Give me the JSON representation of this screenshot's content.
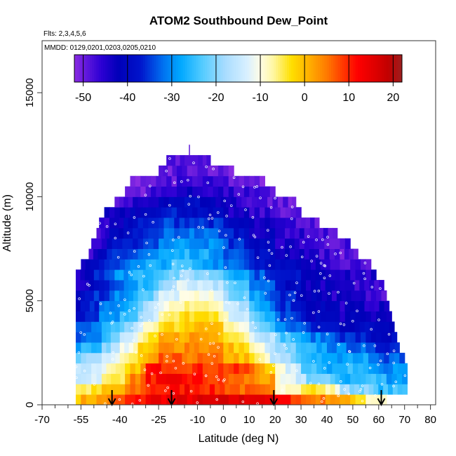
{
  "chart_data": {
    "type": "heatmap",
    "title": "ATOM2 Southbound Dew_Point",
    "subtitle_flights": "Flts: 2,3,4,5,6",
    "subtitle_dates": "MMDD: 0129,0201,0203,0205,0210",
    "xlabel": "Latitude (deg N)",
    "ylabel": "Altitude (m)",
    "xlim": [
      -70,
      82
    ],
    "ylim": [
      0,
      17500
    ],
    "x_ticks": [
      -70,
      -55,
      -40,
      -25,
      -10,
      0,
      10,
      20,
      30,
      40,
      50,
      60,
      70,
      80
    ],
    "x_tick_labels": [
      "-70",
      "-55",
      "-40",
      "-25",
      "-10",
      "0",
      "10",
      "20",
      "30",
      "40",
      "50",
      "60",
      "70",
      "80"
    ],
    "x_minor_ticks": [
      -65,
      -60,
      -50,
      -45,
      -35,
      -30,
      -20,
      -15,
      -5,
      5,
      15,
      25,
      35,
      45,
      55,
      65,
      75
    ],
    "y_ticks": [
      0,
      5000,
      10000,
      15000
    ],
    "y_tick_labels": [
      "0",
      "5000",
      "10000",
      "15000"
    ],
    "colorbar": {
      "min": -52,
      "max": 22,
      "ticks": [
        -50,
        -40,
        -30,
        -20,
        -10,
        0,
        10,
        20
      ],
      "tick_labels": [
        "-50",
        "-40",
        "-30",
        "-20",
        "-10",
        "0",
        "10",
        "20"
      ],
      "stops": [
        {
          "value": -52,
          "color": "#8a2be2"
        },
        {
          "value": -46,
          "color": "#2d00d4"
        },
        {
          "value": -42,
          "color": "#0000b8"
        },
        {
          "value": -37,
          "color": "#0015cc"
        },
        {
          "value": -32,
          "color": "#0070f0"
        },
        {
          "value": -28,
          "color": "#00a8ff"
        },
        {
          "value": -23,
          "color": "#55ccff"
        },
        {
          "value": -18,
          "color": "#a8dcff"
        },
        {
          "value": -13,
          "color": "#d8f0ff"
        },
        {
          "value": -10,
          "color": "#fffde6"
        },
        {
          "value": -7,
          "color": "#fff6a0"
        },
        {
          "value": -3,
          "color": "#ffe000"
        },
        {
          "value": 1,
          "color": "#ffb000"
        },
        {
          "value": 5,
          "color": "#ff7a00"
        },
        {
          "value": 9,
          "color": "#ff3300"
        },
        {
          "value": 12,
          "color": "#ff0000"
        },
        {
          "value": 16,
          "color": "#dd0000"
        },
        {
          "value": 19,
          "color": "#c00000"
        },
        {
          "value": 22,
          "color": "#9c1f1f"
        }
      ]
    },
    "grid": false,
    "legend": "none",
    "arrows_lat": [
      -43,
      -20,
      19.5,
      61
    ],
    "rows": [
      {
        "alt": 500,
        "segs": [
          [
            -57,
            0
          ],
          [
            -45,
            5
          ],
          [
            -38,
            9
          ],
          [
            -30,
            14
          ],
          [
            10,
            17
          ],
          [
            20,
            12
          ],
          [
            30,
            6
          ],
          [
            45,
            1
          ],
          [
            55,
            -8
          ]
        ],
        "xmax": 63
      },
      {
        "alt": 1000,
        "segs": [
          [
            -57,
            -6
          ],
          [
            -47,
            -2
          ],
          [
            -38,
            3
          ],
          [
            -30,
            10
          ],
          [
            -15,
            13
          ],
          [
            20,
            -8
          ],
          [
            32,
            -2
          ],
          [
            45,
            -18
          ],
          [
            58,
            -25
          ]
        ],
        "xmax": 71
      },
      {
        "alt": 1500,
        "segs": [
          [
            -57,
            -15
          ],
          [
            -47,
            -8
          ],
          [
            -38,
            2
          ],
          [
            -30,
            11
          ],
          [
            -18,
            13
          ],
          [
            20,
            -11
          ],
          [
            32,
            -20
          ],
          [
            45,
            -27
          ],
          [
            55,
            -24
          ],
          [
            63,
            -28
          ]
        ],
        "xmax": 71
      },
      {
        "alt": 2000,
        "segs": [
          [
            -57,
            -16
          ],
          [
            -47,
            -10
          ],
          [
            -38,
            -5
          ],
          [
            -30,
            11
          ],
          [
            -18,
            10
          ],
          [
            10,
            6
          ],
          [
            20,
            -10
          ],
          [
            30,
            -22
          ],
          [
            40,
            -28
          ],
          [
            50,
            -24
          ],
          [
            60,
            -30
          ]
        ],
        "xmax": 71
      },
      {
        "alt": 2500,
        "segs": [
          [
            -57,
            -22
          ],
          [
            -47,
            -14
          ],
          [
            -40,
            -8
          ],
          [
            -33,
            -3
          ],
          [
            -25,
            6
          ],
          [
            -18,
            6
          ],
          [
            0,
            2
          ],
          [
            10,
            -4
          ],
          [
            18,
            -16
          ],
          [
            28,
            -24
          ],
          [
            40,
            -30
          ],
          [
            50,
            -27
          ],
          [
            60,
            -33
          ]
        ],
        "xmax": 70
      },
      {
        "alt": 3000,
        "segs": [
          [
            -57,
            -28
          ],
          [
            -47,
            -20
          ],
          [
            -40,
            -12
          ],
          [
            -33,
            -4
          ],
          [
            -25,
            3
          ],
          [
            -15,
            5
          ],
          [
            0,
            1
          ],
          [
            10,
            -8
          ],
          [
            18,
            -18
          ],
          [
            28,
            -26
          ],
          [
            40,
            -30
          ],
          [
            55,
            -36
          ]
        ],
        "xmax": 68
      },
      {
        "alt": 3500,
        "segs": [
          [
            -57,
            -33
          ],
          [
            -47,
            -24
          ],
          [
            -40,
            -17
          ],
          [
            -33,
            -8
          ],
          [
            -25,
            0
          ],
          [
            -15,
            3
          ],
          [
            0,
            -1
          ],
          [
            10,
            -12
          ],
          [
            20,
            -22
          ],
          [
            30,
            -30
          ],
          [
            45,
            -35
          ],
          [
            55,
            -40
          ]
        ],
        "xmax": 67
      },
      {
        "alt": 4000,
        "segs": [
          [
            -57,
            -35
          ],
          [
            -47,
            -28
          ],
          [
            -40,
            -22
          ],
          [
            -33,
            -12
          ],
          [
            -25,
            -4
          ],
          [
            -15,
            1
          ],
          [
            0,
            -5
          ],
          [
            10,
            -18
          ],
          [
            20,
            -30
          ],
          [
            32,
            -37
          ],
          [
            45,
            -40
          ]
        ],
        "xmax": 66
      },
      {
        "alt": 4500,
        "segs": [
          [
            -57,
            -38
          ],
          [
            -48,
            -30
          ],
          [
            -40,
            -26
          ],
          [
            -33,
            -18
          ],
          [
            -25,
            -8
          ],
          [
            -15,
            -2
          ],
          [
            0,
            -10
          ],
          [
            10,
            -22
          ],
          [
            20,
            -33
          ],
          [
            30,
            -40
          ],
          [
            45,
            -43
          ]
        ],
        "xmax": 65
      },
      {
        "alt": 5000,
        "segs": [
          [
            -57,
            -40
          ],
          [
            -48,
            -33
          ],
          [
            -40,
            -28
          ],
          [
            -33,
            -20
          ],
          [
            -25,
            -10
          ],
          [
            -15,
            -4
          ],
          [
            0,
            -14
          ],
          [
            10,
            -26
          ],
          [
            20,
            -34
          ],
          [
            30,
            -40
          ],
          [
            45,
            -44
          ]
        ],
        "xmax": 64
      },
      {
        "alt": 5500,
        "segs": [
          [
            -57,
            -40
          ],
          [
            -50,
            -36
          ],
          [
            -42,
            -30
          ],
          [
            -33,
            -25
          ],
          [
            -25,
            -15
          ],
          [
            -15,
            -8
          ],
          [
            0,
            -18
          ],
          [
            10,
            -28
          ],
          [
            18,
            -34
          ],
          [
            28,
            -40
          ],
          [
            40,
            -44
          ],
          [
            55,
            -47
          ]
        ],
        "xmax": 63
      },
      {
        "alt": 6000,
        "segs": [
          [
            -57,
            -44
          ],
          [
            -50,
            -38
          ],
          [
            -42,
            -33
          ],
          [
            -33,
            -27
          ],
          [
            -25,
            -20
          ],
          [
            -18,
            -13
          ],
          [
            0,
            -22
          ],
          [
            10,
            -30
          ],
          [
            20,
            -38
          ],
          [
            30,
            -42
          ],
          [
            45,
            -46
          ]
        ],
        "xmax": 62
      },
      {
        "alt": 6500,
        "segs": [
          [
            -57,
            -44
          ],
          [
            -50,
            -35
          ],
          [
            -42,
            -30
          ],
          [
            -35,
            -26
          ],
          [
            -25,
            -22
          ],
          [
            -15,
            -18
          ],
          [
            0,
            -24
          ],
          [
            10,
            -32
          ],
          [
            20,
            -38
          ],
          [
            30,
            -40
          ],
          [
            45,
            -45
          ]
        ],
        "xmax": 59
      },
      {
        "alt": 7000,
        "segs": [
          [
            -55,
            -45
          ],
          [
            -48,
            -36
          ],
          [
            -40,
            -32
          ],
          [
            -30,
            -28
          ],
          [
            -20,
            -24
          ],
          [
            -10,
            -28
          ],
          [
            0,
            -30
          ],
          [
            10,
            -36
          ],
          [
            20,
            -40
          ],
          [
            30,
            -44
          ],
          [
            45,
            -47
          ]
        ],
        "xmax": 57
      },
      {
        "alt": 7500,
        "segs": [
          [
            -52,
            -46
          ],
          [
            -45,
            -38
          ],
          [
            -35,
            -32
          ],
          [
            -25,
            -28
          ],
          [
            -15,
            -26
          ],
          [
            0,
            -32
          ],
          [
            10,
            -38
          ],
          [
            20,
            -42
          ],
          [
            35,
            -46
          ],
          [
            45,
            -49
          ]
        ],
        "xmax": 52
      },
      {
        "alt": 8000,
        "segs": [
          [
            -51,
            -48
          ],
          [
            -45,
            -40
          ],
          [
            -35,
            -36
          ],
          [
            -25,
            -30
          ],
          [
            -15,
            -28
          ],
          [
            0,
            -34
          ],
          [
            10,
            -40
          ],
          [
            20,
            -44
          ],
          [
            35,
            -48
          ]
        ],
        "xmax": 49
      },
      {
        "alt": 8500,
        "segs": [
          [
            -49,
            -50
          ],
          [
            -44,
            -42
          ],
          [
            -35,
            -38
          ],
          [
            -25,
            -33
          ],
          [
            -15,
            -31
          ],
          [
            0,
            -36
          ],
          [
            10,
            -42
          ],
          [
            20,
            -45
          ],
          [
            35,
            -48
          ]
        ],
        "xmax": 44
      },
      {
        "alt": 9000,
        "segs": [
          [
            -48,
            -48
          ],
          [
            -42,
            -42
          ],
          [
            -35,
            -39
          ],
          [
            -25,
            -35
          ],
          [
            -15,
            -34
          ],
          [
            0,
            -40
          ],
          [
            10,
            -44
          ],
          [
            20,
            -46
          ],
          [
            30,
            -49
          ]
        ],
        "xmax": 37
      },
      {
        "alt": 9500,
        "segs": [
          [
            -46,
            -44
          ],
          [
            -40,
            -42
          ],
          [
            -30,
            -38
          ],
          [
            -20,
            -37
          ],
          [
            -10,
            -40
          ],
          [
            0,
            -44
          ],
          [
            10,
            -46
          ],
          [
            20,
            -48
          ],
          [
            30,
            -50
          ]
        ],
        "xmax": 30
      },
      {
        "alt": 10000,
        "segs": [
          [
            -42,
            -49
          ],
          [
            -35,
            -46
          ],
          [
            -25,
            -40
          ],
          [
            -15,
            -39
          ],
          [
            -5,
            -42
          ],
          [
            5,
            -46
          ],
          [
            15,
            -48
          ],
          [
            25,
            -51
          ]
        ],
        "xmax": 28
      },
      {
        "alt": 10500,
        "segs": [
          [
            -38,
            -50
          ],
          [
            -30,
            -48
          ],
          [
            -20,
            -44
          ],
          [
            -10,
            -44
          ],
          [
            0,
            -46
          ],
          [
            10,
            -48
          ],
          [
            20,
            -51
          ]
        ],
        "xmax": 18
      },
      {
        "alt": 11000,
        "segs": [
          [
            -36,
            -51
          ],
          [
            -28,
            -50
          ],
          [
            -18,
            -47
          ],
          [
            -8,
            -47
          ],
          [
            2,
            -49
          ],
          [
            8,
            -51
          ]
        ],
        "xmax": 16
      },
      {
        "alt": 11500,
        "segs": [
          [
            -25,
            -50
          ],
          [
            -18,
            -48
          ],
          [
            -10,
            -48
          ],
          [
            -2,
            -50
          ]
        ],
        "xmax": 4
      },
      {
        "alt": 12000,
        "segs": [
          [
            -22,
            -48
          ],
          [
            -15,
            -47
          ],
          [
            -8,
            -49
          ]
        ],
        "xmax": -5
      }
    ]
  }
}
